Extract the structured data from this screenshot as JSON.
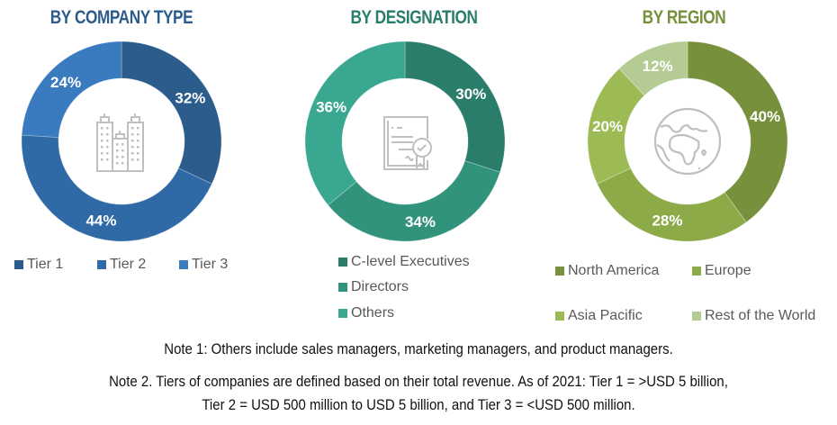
{
  "chart_data": [
    {
      "type": "pie",
      "variant": "donut",
      "title": "BY COMPANY TYPE",
      "title_color": "#2b5c8c",
      "center_icon": "buildings-icon",
      "categories": [
        "Tier 1",
        "Tier 2",
        "Tier 3"
      ],
      "values": [
        32,
        44,
        24
      ],
      "labels": [
        "32%",
        "44%",
        "24%"
      ],
      "colors": [
        "#2b5c8c",
        "#2f69a6",
        "#3a7abf"
      ],
      "legend_position": "bottom"
    },
    {
      "type": "pie",
      "variant": "donut",
      "title": "BY DESIGNATION",
      "title_color": "#2a7d6a",
      "center_icon": "certificate-icon",
      "categories": [
        "C-level Executives",
        "Directors",
        "Others"
      ],
      "values": [
        30,
        34,
        36
      ],
      "labels": [
        "30%",
        "34%",
        "36%"
      ],
      "colors": [
        "#2a7d6a",
        "#32937c",
        "#3aa891"
      ],
      "legend_position": "bottom"
    },
    {
      "type": "pie",
      "variant": "donut",
      "title": "BY REGION",
      "title_color": "#76903c",
      "center_icon": "globe-icon",
      "categories": [
        "North America",
        "Europe",
        "Asia Pacific",
        "Rest of the World"
      ],
      "values": [
        40,
        28,
        20,
        12
      ],
      "labels": [
        "40%",
        "28%",
        "20%",
        "12%"
      ],
      "colors": [
        "#76903c",
        "#8daa49",
        "#9dbb55",
        "#b4cb94"
      ],
      "legend_position": "bottom"
    }
  ],
  "notes": {
    "note1": "Note 1: Others include sales managers, marketing managers, and product managers.",
    "note2_line1": "Note 2. Tiers of companies are defined based on their total revenue. As of 2021: Tier 1 = >USD 5 billion,",
    "note2_line2": "Tier 2 = USD 500 million to USD 5 billion, and Tier 3 = <USD 500 million."
  }
}
